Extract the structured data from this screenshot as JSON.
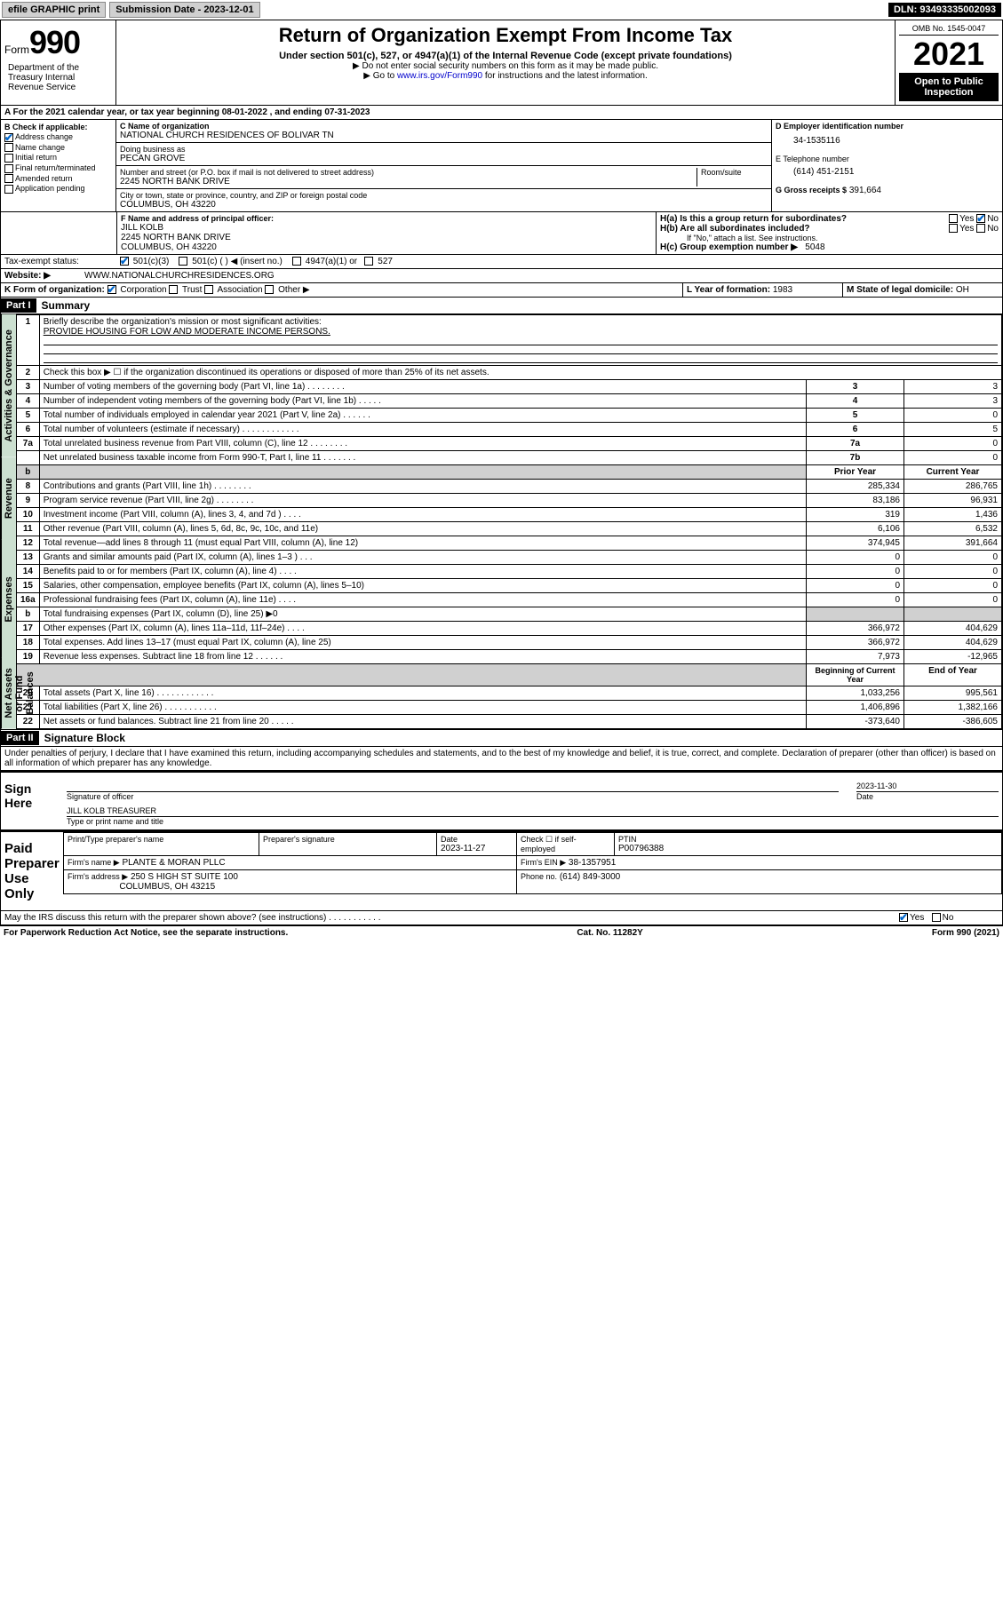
{
  "top": {
    "efile": "efile GRAPHIC print",
    "subdate_label": "Submission Date - 2023-12-01",
    "dln": "DLN: 93493335002093"
  },
  "header": {
    "form_word": "Form",
    "form_num": "990",
    "title": "Return of Organization Exempt From Income Tax",
    "sub": "Under section 501(c), 527, or 4947(a)(1) of the Internal Revenue Code (except private foundations)",
    "note1": "▶ Do not enter social security numbers on this form as it may be made public.",
    "note2_pre": "▶ Go to ",
    "note2_link": "www.irs.gov/Form990",
    "note2_post": " for instructions and the latest information.",
    "omb": "OMB No. 1545-0047",
    "year": "2021",
    "open": "Open to Public Inspection",
    "dept": "Department of the Treasury Internal Revenue Service"
  },
  "line_a": "A For the 2021 calendar year, or tax year beginning 08-01-2022    , and ending 07-31-2023",
  "col_b": {
    "hdr": "B Check if applicable:",
    "items": [
      "Address change",
      "Name change",
      "Initial return",
      "Final return/terminated",
      "Amended return",
      "Application pending"
    ],
    "checked_idx": 0
  },
  "col_c": {
    "name_lbl": "C Name of organization",
    "name": "NATIONAL CHURCH RESIDENCES OF BOLIVAR TN",
    "dba_lbl": "Doing business as",
    "dba": "PECAN GROVE",
    "addr_lbl": "Number and street (or P.O. box if mail is not delivered to street address)",
    "room_lbl": "Room/suite",
    "addr": "2245 NORTH BANK DRIVE",
    "city_lbl": "City or town, state or province, country, and ZIP or foreign postal code",
    "city": "COLUMBUS, OH  43220"
  },
  "col_d": {
    "ein_lbl": "D Employer identification number",
    "ein": "34-1535116",
    "tel_lbl": "E Telephone number",
    "tel": "(614) 451-2151",
    "gross_lbl": "G Gross receipts $",
    "gross": "391,664"
  },
  "officer": {
    "lbl": "F Name and address of principal officer:",
    "name": "JILL KOLB",
    "addr1": "2245 NORTH BANK DRIVE",
    "addr2": "COLUMBUS, OH  43220"
  },
  "h": {
    "ha": "H(a)  Is this a group return for subordinates?",
    "hb": "H(b)  Are all subordinates included?",
    "hb_note": "If \"No,\" attach a list. See instructions.",
    "hc_lbl": "H(c)  Group exemption number ▶",
    "hc_val": "5048",
    "yes": "Yes",
    "no": "No"
  },
  "tax_status": {
    "lbl": "Tax-exempt status:",
    "o1": "501(c)(3)",
    "o2": "501(c) (   ) ◀ (insert no.)",
    "o3": "4947(a)(1) or",
    "o4": "527"
  },
  "website": {
    "lbl": "Website: ▶",
    "val": "WWW.NATIONALCHURCHRESIDENCES.ORG"
  },
  "k": {
    "lbl": "K Form of organization:",
    "o1": "Corporation",
    "o2": "Trust",
    "o3": "Association",
    "o4": "Other ▶"
  },
  "l": {
    "lbl": "L Year of formation:",
    "val": "1983"
  },
  "m": {
    "lbl": "M State of legal domicile:",
    "val": "OH"
  },
  "part1": {
    "hdr": "Part I",
    "title": "Summary"
  },
  "summary": {
    "q1_lbl": "1",
    "q1": "Briefly describe the organization's mission or most significant activities:",
    "q1_val": "PROVIDE HOUSING FOR LOW AND MODERATE INCOME PERSONS.",
    "q2_lbl": "2",
    "q2": "Check this box ▶ ☐  if the organization discontinued its operations or disposed of more than 25% of its net assets.",
    "rows_a": [
      {
        "n": "3",
        "desc": "Number of voting members of the governing body (Part VI, line 1a)   .    .    .    .    .    .    .    .",
        "box": "3",
        "val": "3"
      },
      {
        "n": "4",
        "desc": "Number of independent voting members of the governing body (Part VI, line 1b)    .    .    .    .    .",
        "box": "4",
        "val": "3"
      },
      {
        "n": "5",
        "desc": "Total number of individuals employed in calendar year 2021 (Part V, line 2a)   .    .    .    .    .    .",
        "box": "5",
        "val": "0"
      },
      {
        "n": "6",
        "desc": "Total number of volunteers (estimate if necessary)   .    .    .    .    .    .    .    .    .    .    .    .",
        "box": "6",
        "val": "5"
      },
      {
        "n": "7a",
        "desc": "Total unrelated business revenue from Part VIII, column (C), line 12   .    .    .    .    .    .    .    .",
        "box": "7a",
        "val": "0"
      },
      {
        "n": "",
        "desc": "Net unrelated business taxable income from Form 990-T, Part I, line 11   .    .    .    .    .    .    .",
        "box": "7b",
        "val": "0"
      }
    ],
    "col_hdr_prior": "Prior Year",
    "col_hdr_current": "Current Year",
    "revenue": [
      {
        "n": "8",
        "desc": "Contributions and grants (Part VIII, line 1h)   .    .    .    .    .    .    .    .",
        "p": "285,334",
        "c": "286,765"
      },
      {
        "n": "9",
        "desc": "Program service revenue (Part VIII, line 2g)   .    .    .    .    .    .    .    .",
        "p": "83,186",
        "c": "96,931"
      },
      {
        "n": "10",
        "desc": "Investment income (Part VIII, column (A), lines 3, 4, and 7d )   .    .    .    .",
        "p": "319",
        "c": "1,436"
      },
      {
        "n": "11",
        "desc": "Other revenue (Part VIII, column (A), lines 5, 6d, 8c, 9c, 10c, and 11e)",
        "p": "6,106",
        "c": "6,532"
      },
      {
        "n": "12",
        "desc": "Total revenue—add lines 8 through 11 (must equal Part VIII, column (A), line 12)",
        "p": "374,945",
        "c": "391,664"
      }
    ],
    "expenses": [
      {
        "n": "13",
        "desc": "Grants and similar amounts paid (Part IX, column (A), lines 1–3 )   .    .    .",
        "p": "0",
        "c": "0"
      },
      {
        "n": "14",
        "desc": "Benefits paid to or for members (Part IX, column (A), line 4)   .    .    .    .",
        "p": "0",
        "c": "0"
      },
      {
        "n": "15",
        "desc": "Salaries, other compensation, employee benefits (Part IX, column (A), lines 5–10)",
        "p": "0",
        "c": "0"
      },
      {
        "n": "16a",
        "desc": "Professional fundraising fees (Part IX, column (A), line 11e)   .    .    .    .",
        "p": "0",
        "c": "0"
      },
      {
        "n": "b",
        "desc": "Total fundraising expenses (Part IX, column (D), line 25) ▶0",
        "p": "",
        "c": "",
        "grey": true
      },
      {
        "n": "17",
        "desc": "Other expenses (Part IX, column (A), lines 11a–11d, 11f–24e)   .    .    .    .",
        "p": "366,972",
        "c": "404,629"
      },
      {
        "n": "18",
        "desc": "Total expenses. Add lines 13–17 (must equal Part IX, column (A), line 25)",
        "p": "366,972",
        "c": "404,629"
      },
      {
        "n": "19",
        "desc": "Revenue less expenses. Subtract line 18 from line 12   .    .    .    .    .    .",
        "p": "7,973",
        "c": "-12,965"
      }
    ],
    "col_hdr_begin": "Beginning of Current Year",
    "col_hdr_end": "End of Year",
    "netassets": [
      {
        "n": "20",
        "desc": "Total assets (Part X, line 16)   .    .    .    .    .    .    .    .    .    .    .    .",
        "p": "1,033,256",
        "c": "995,561"
      },
      {
        "n": "21",
        "desc": "Total liabilities (Part X, line 26)   .    .    .    .    .    .    .    .    .    .    .",
        "p": "1,406,896",
        "c": "1,382,166"
      },
      {
        "n": "22",
        "desc": "Net assets or fund balances. Subtract line 21 from line 20   .    .    .    .    .",
        "p": "-373,640",
        "c": "-386,605"
      }
    ]
  },
  "vlabels": {
    "gov": "Activities & Governance",
    "rev": "Revenue",
    "exp": "Expenses",
    "net": "Net Assets or Fund Balances"
  },
  "part2": {
    "hdr": "Part II",
    "title": "Signature Block"
  },
  "penalty": "Under penalties of perjury, I declare that I have examined this return, including accompanying schedules and statements, and to the best of my knowledge and belief, it is true, correct, and complete. Declaration of preparer (other than officer) is based on all information of which preparer has any knowledge.",
  "sign": {
    "here": "Sign Here",
    "sig_lbl": "Signature of officer",
    "date": "2023-11-30",
    "date_lbl": "Date",
    "name": "JILL KOLB  TREASURER",
    "name_lbl": "Type or print name and title"
  },
  "paid": {
    "lbl": "Paid Preparer Use Only",
    "h1": "Print/Type preparer's name",
    "h2": "Preparer's signature",
    "h3_lbl": "Date",
    "h3": "2023-11-27",
    "h4_lbl": "Check ☐ if self-employed",
    "h5_lbl": "PTIN",
    "h5": "P00796388",
    "firm_lbl": "Firm's name     ▶",
    "firm": "PLANTE & MORAN PLLC",
    "ein_lbl": "Firm's EIN ▶",
    "ein": "38-1357951",
    "addr_lbl": "Firm's address ▶",
    "addr1": "250 S HIGH ST SUITE 100",
    "addr2": "COLUMBUS, OH  43215",
    "phone_lbl": "Phone no.",
    "phone": "(614) 849-3000"
  },
  "discuss": "May the IRS discuss this return with the preparer shown above? (see instructions)   .    .    .    .    .    .    .    .    .    .    .",
  "footer": {
    "l": "For Paperwork Reduction Act Notice, see the separate instructions.",
    "m": "Cat. No. 11282Y",
    "r": "Form 990 (2021)"
  }
}
